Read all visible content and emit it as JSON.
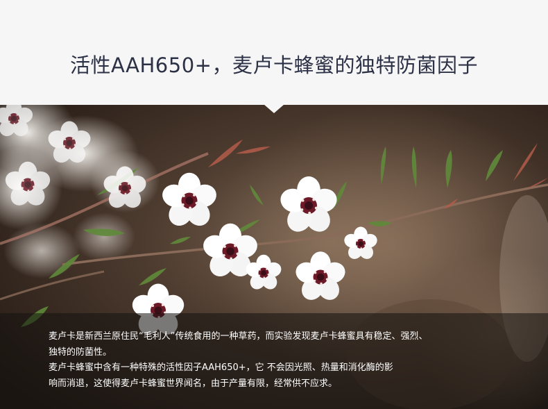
{
  "headline": "活性AAH650+，麦卢卡蜂蜜的独特防菌因子",
  "caption": {
    "line1": "麦卢卡是新西兰原住民“毛利人”传统食用的一种草药，而实验发现麦卢卡蜂蜜具有稳定、强烈、",
    "line2": "独特的防菌性。",
    "line3": "麦卢卡蜂蜜中含有一种特殊的活性因子AAH650+，它 不会因光照、热量和消化酶的影",
    "line4": "响而消退，这使得麦卢卡蜂蜜世界闻名，由于产量有限，经常供不应求。"
  },
  "photo": {
    "subject": "manuka-flowers",
    "colors": {
      "background_dark": "#3a2c22",
      "background_warm": "#6e5846",
      "petal": "#ffffff",
      "center": "#7a1f2e",
      "leaf": "#5f8a3a",
      "stem": "#8a5a4a"
    }
  }
}
